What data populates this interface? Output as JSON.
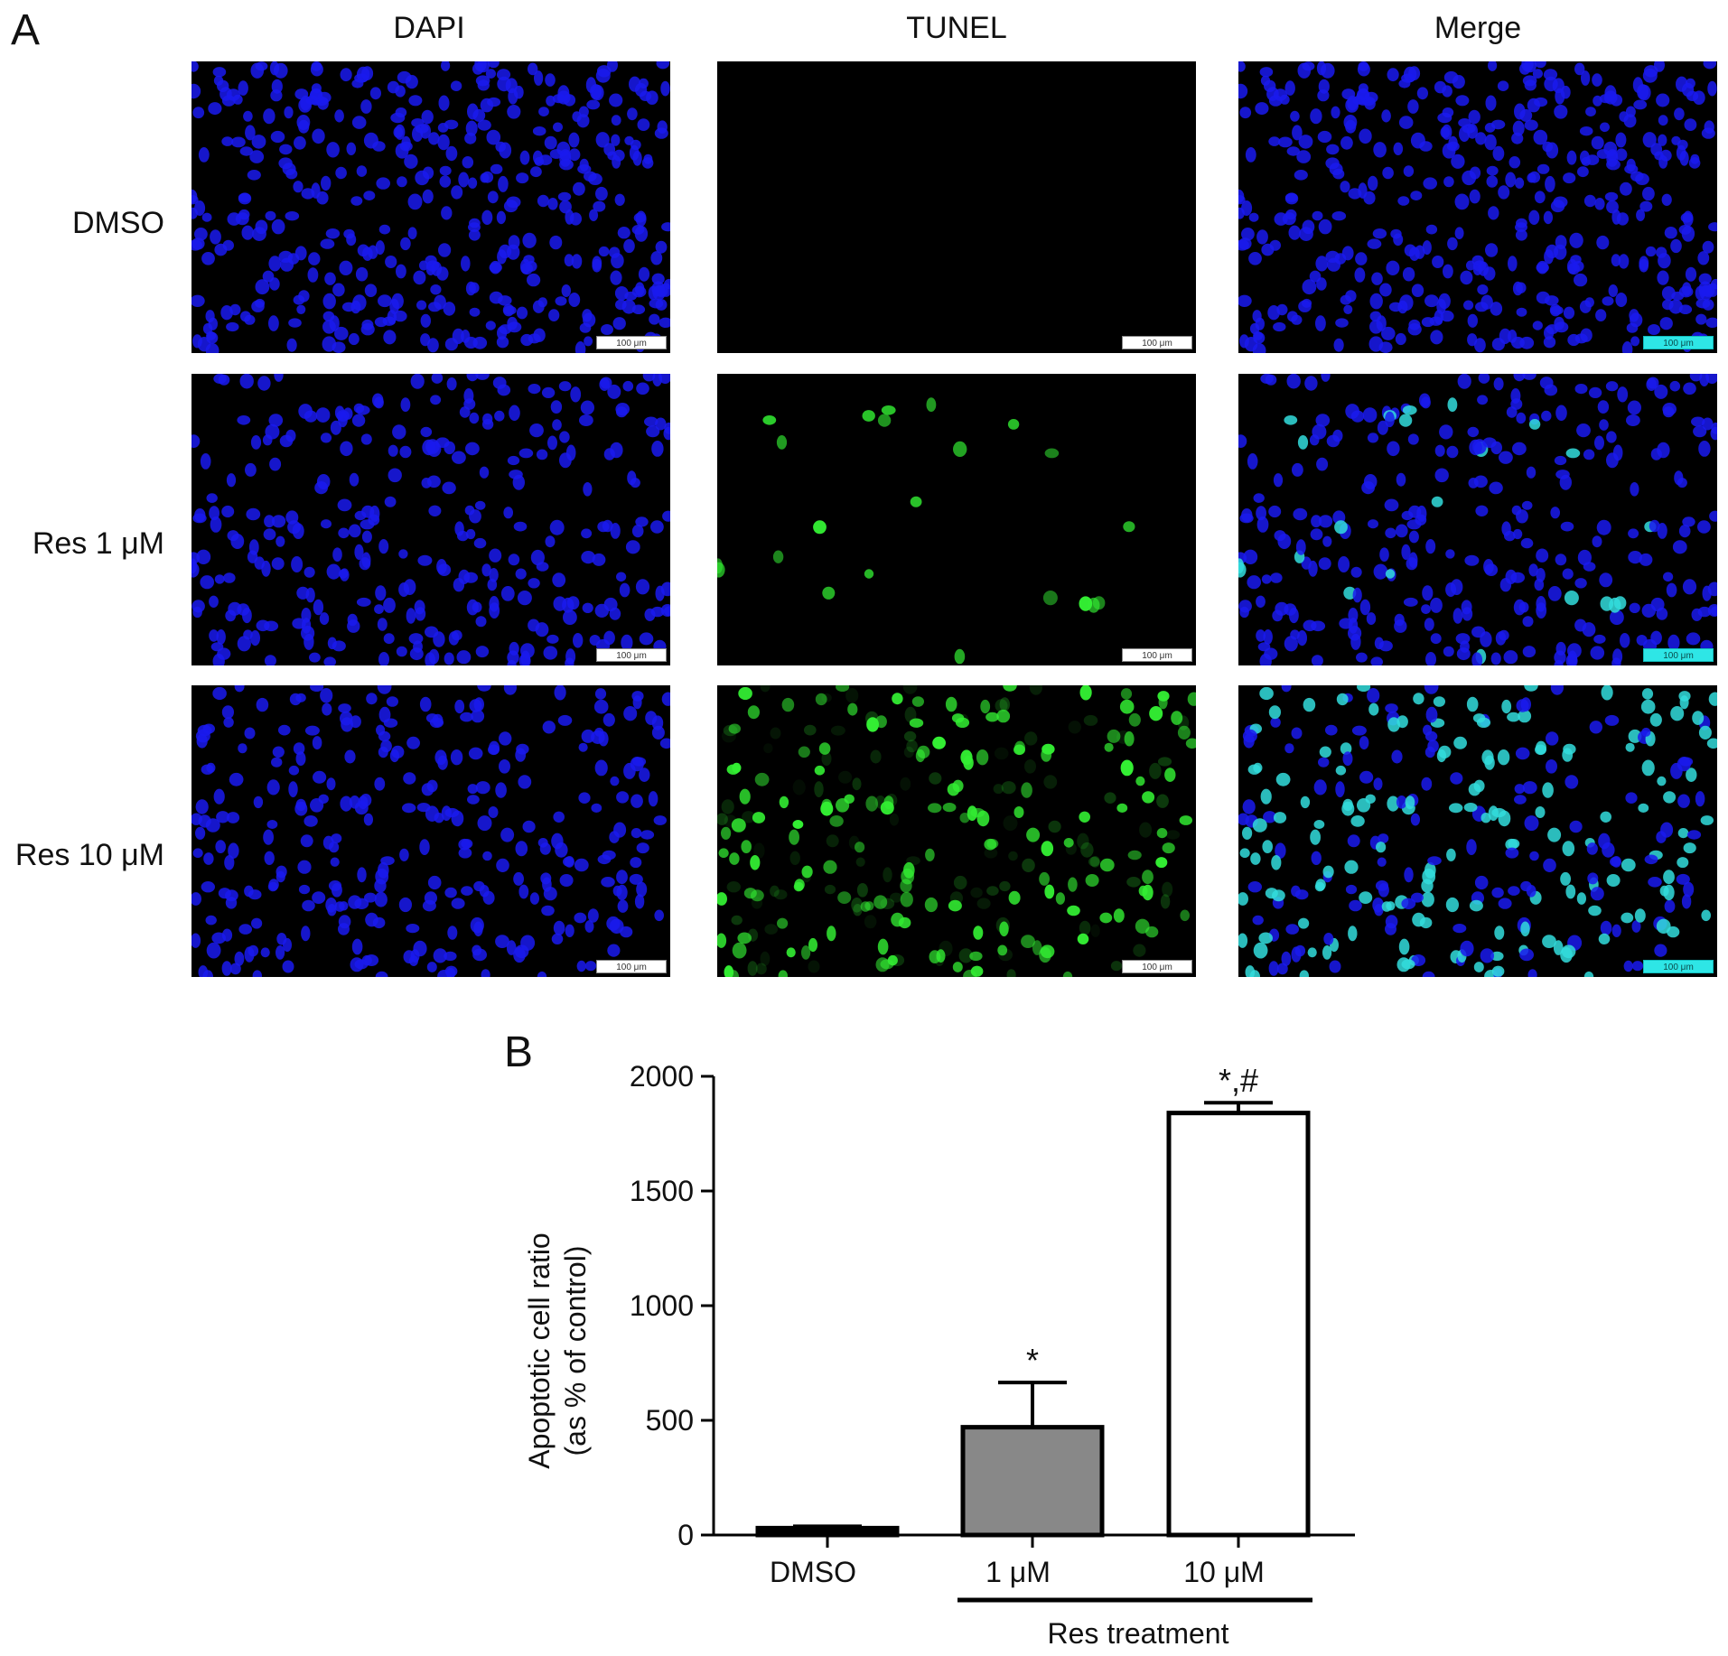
{
  "figure": {
    "panel_a_label": "A",
    "panel_b_label": "B",
    "columns": [
      "DAPI",
      "TUNEL",
      "Merge"
    ],
    "rows": [
      "DMSO",
      "Res 1 μM",
      "Res 10 μM"
    ],
    "scale_bar_label": "100 μm",
    "colors": {
      "nucleus_blue": "#1a1aee",
      "tunel_green": "#33ee33",
      "merge_cyan": "#33dddd",
      "background": "#000000"
    }
  },
  "chart_data": {
    "type": "bar",
    "categories": [
      "DMSO",
      "1 μM",
      "10 μM"
    ],
    "values": [
      30,
      470,
      1840
    ],
    "errors": [
      8,
      195,
      45
    ],
    "bar_colors": [
      "#000000",
      "#888888",
      "#ffffff"
    ],
    "significance": [
      "",
      "*",
      "*,#"
    ],
    "ylabel_line1": "Apoptotic cell ratio",
    "ylabel_line2": "(as % of control)",
    "xlabel": "",
    "group_label": "Res treatment",
    "ylim": [
      0,
      2000
    ],
    "yticks": [
      0,
      500,
      1000,
      1500,
      2000
    ],
    "grid": false
  }
}
